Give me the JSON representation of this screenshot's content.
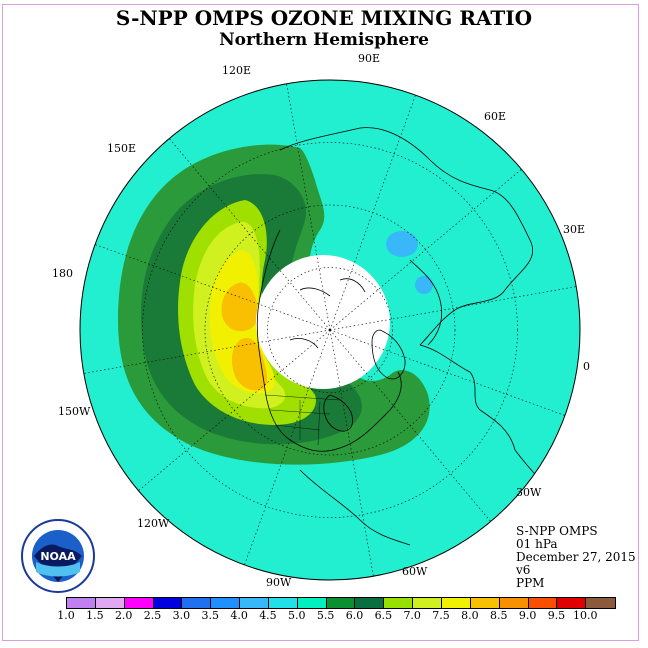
{
  "title": "S-NPP OMPS OZONE MIXING RATIO",
  "subtitle": "Northern Hemisphere",
  "longitude_labels": {
    "e120": "120E",
    "e90": "90E",
    "e60": "60E",
    "e150": "150E",
    "e30": "30E",
    "d180": "180",
    "d0": "0",
    "w150": "150W",
    "w30": "30W",
    "w120": "120W",
    "w90": "90W",
    "w60": "60W"
  },
  "info": {
    "instrument": "S-NPP OMPS",
    "level": "01 hPa",
    "date": "December 27, 2015",
    "version": "v6",
    "units": "PPM"
  },
  "logo": {
    "text": "NOAA",
    "ring_text": "NATIONAL OCEANIC AND ATMOSPHERIC ADMINISTRATION · U.S. DEPARTMENT OF COMMERCE"
  },
  "colorbar": {
    "ticks": [
      "1.0",
      "1.5",
      "2.0",
      "2.5",
      "3.0",
      "3.5",
      "4.0",
      "4.5",
      "5.0",
      "5.5",
      "6.0",
      "6.5",
      "7.0",
      "7.5",
      "8.0",
      "8.5",
      "9.0",
      "9.5",
      "10.0"
    ],
    "colors": [
      "#c080f0",
      "#e0a8f0",
      "#ff00ff",
      "#0000e0",
      "#2070f0",
      "#1e90ff",
      "#38b8f8",
      "#22e0e8",
      "#00f0c0",
      "#0a9030",
      "#087040",
      "#98e000",
      "#d0f020",
      "#f0f000",
      "#f8c000",
      "#f89000",
      "#f85000",
      "#e00000",
      "#8b5a3c"
    ]
  },
  "map_colors": {
    "background": "#22eed0",
    "band_55": "#2a9a3a",
    "band_60": "#1a7a38",
    "band_65": "#a0e000",
    "band_70": "#d0f020",
    "band_75": "#f0f000",
    "band_80": "#f8c000",
    "low_40": "#38b8f8",
    "polar_night": "#ffffff"
  }
}
